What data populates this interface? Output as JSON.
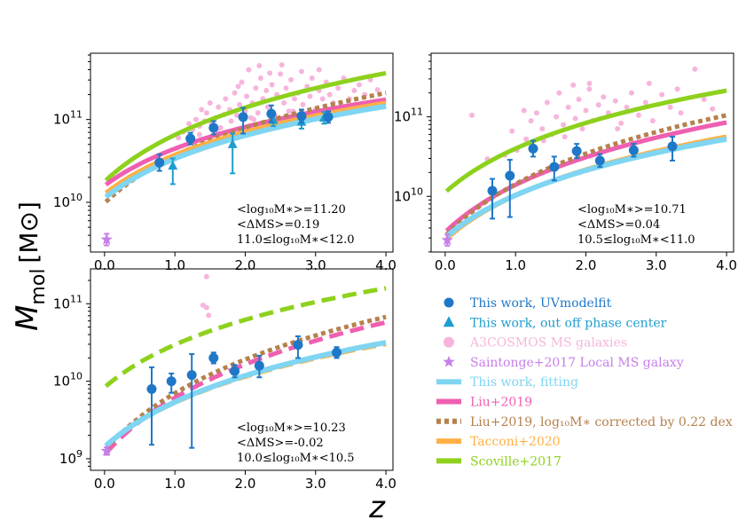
{
  "figure": {
    "ylabel_main": "M",
    "ylabel_sub": "mol",
    "ylabel_unit": "[M⊙]",
    "xlabel": "z"
  },
  "colors": {
    "uv": "#1f77c7",
    "offcenter": "#1e9ecf",
    "a3cosmos": "#f6b5dc",
    "saintonge": "#c77fe8",
    "fitting": "#7fd5f2",
    "liu2019": "#ef5fb1",
    "liu2019c": "#b5814c",
    "tacconi": "#ffb045",
    "scoville": "#8ed11d"
  },
  "legend": [
    {
      "key": "uv",
      "marker": "circle",
      "label": "This work, UVmodelfit",
      "color": "#1f77c7"
    },
    {
      "key": "offcenter",
      "marker": "triangle",
      "label": "This work, out off phase center",
      "color": "#1e9ecf"
    },
    {
      "key": "a3cosmos",
      "marker": "circle",
      "label": "A3COSMOS MS galaxies",
      "color": "#f6b5dc"
    },
    {
      "key": "saintonge",
      "marker": "star",
      "label": "Saintonge+2017 Local MS galaxy",
      "color": "#c77fe8"
    },
    {
      "key": "fitting",
      "marker": "line",
      "label": "This work, fitting",
      "color": "#7fd5f2"
    },
    {
      "key": "liu2019",
      "marker": "line",
      "label": "Liu+2019",
      "color": "#ef5fb1"
    },
    {
      "key": "liu2019c",
      "marker": "line",
      "label": "Liu+2019, log₁₀M∗ corrected by 0.22 dex",
      "color": "#b5814c"
    },
    {
      "key": "tacconi",
      "marker": "line",
      "label": "Tacconi+2020",
      "color": "#ffb045"
    },
    {
      "key": "scoville",
      "marker": "line",
      "label": "Scoville+2017",
      "color": "#8ed11d"
    }
  ],
  "chart_data": [
    {
      "type": "scatter",
      "panel": "top-left",
      "xlim": [
        -0.2,
        4.1
      ],
      "ylim_log10": [
        9.4,
        11.8
      ],
      "y_scale": "log",
      "x_ticks": [
        "0.0",
        "1.0",
        "2.0",
        "3.0",
        "4.0"
      ],
      "y_ticks": [
        {
          "base": "10",
          "exp": "10",
          "log": 10
        },
        {
          "base": "10",
          "exp": "11",
          "log": 11
        }
      ],
      "annotations": [
        "<log₁₀M∗>=11.20",
        "<ΔMS>=0.19",
        "11.0≤log₁₀M∗<12.0"
      ],
      "uv_points": [
        {
          "x": 0.78,
          "y": 10.48,
          "lo": 10.38,
          "hi": 10.58
        },
        {
          "x": 1.22,
          "y": 10.77,
          "lo": 10.7,
          "hi": 10.84
        },
        {
          "x": 1.55,
          "y": 10.9,
          "lo": 10.82,
          "hi": 10.98
        },
        {
          "x": 1.97,
          "y": 11.03,
          "lo": 10.83,
          "hi": 11.14
        },
        {
          "x": 2.37,
          "y": 11.07,
          "lo": 10.97,
          "hi": 11.17
        },
        {
          "x": 2.8,
          "y": 11.04,
          "lo": 10.96,
          "hi": 11.12
        },
        {
          "x": 3.18,
          "y": 11.03,
          "lo": 10.96,
          "hi": 11.1
        }
      ],
      "offcenter_points": [
        {
          "x": 0.97,
          "y": 10.44,
          "lo": 10.22,
          "hi": 10.53
        },
        {
          "x": 1.82,
          "y": 10.7,
          "lo": 10.35,
          "hi": 10.83
        },
        {
          "x": 2.4,
          "y": 10.99,
          "lo": 10.92,
          "hi": 11.06
        },
        {
          "x": 2.8,
          "y": 10.97,
          "lo": 10.89,
          "hi": 11.05
        },
        {
          "x": 3.12,
          "y": 11.02,
          "lo": 10.95,
          "hi": 11.09
        }
      ],
      "saintonge_points": [
        {
          "x": 0.03,
          "y": 9.55,
          "lo": 9.48,
          "hi": 9.62
        }
      ],
      "a3cosmos_points": [
        [
          1.05,
          10.78
        ],
        [
          1.12,
          10.85
        ],
        [
          1.2,
          10.95
        ],
        [
          1.25,
          10.88
        ],
        [
          1.3,
          11.0
        ],
        [
          1.35,
          10.92
        ],
        [
          1.38,
          11.12
        ],
        [
          1.42,
          10.98
        ],
        [
          1.45,
          11.08
        ],
        [
          1.5,
          11.2
        ],
        [
          1.52,
          10.95
        ],
        [
          1.58,
          11.02
        ],
        [
          1.62,
          11.15
        ],
        [
          1.65,
          10.9
        ],
        [
          1.7,
          11.06
        ],
        [
          1.72,
          11.25
        ],
        [
          1.78,
          11.12
        ],
        [
          1.8,
          10.98
        ],
        [
          1.85,
          11.32
        ],
        [
          1.88,
          11.05
        ],
        [
          1.92,
          11.18
        ],
        [
          1.95,
          11.45
        ],
        [
          2.0,
          11.1
        ],
        [
          2.02,
          11.28
        ],
        [
          2.05,
          11.6
        ],
        [
          2.08,
          11.02
        ],
        [
          2.1,
          11.2
        ],
        [
          2.15,
          11.38
        ],
        [
          2.18,
          11.08
        ],
        [
          2.22,
          11.5
        ],
        [
          2.25,
          11.25
        ],
        [
          2.3,
          11.35
        ],
        [
          2.32,
          11.15
        ],
        [
          2.38,
          11.42
        ],
        [
          2.42,
          11.05
        ],
        [
          2.45,
          11.3
        ],
        [
          2.5,
          11.55
        ],
        [
          2.55,
          11.2
        ],
        [
          2.58,
          11.38
        ],
        [
          2.62,
          11.1
        ],
        [
          2.65,
          11.48
        ],
        [
          2.7,
          11.25
        ],
        [
          2.75,
          11.32
        ],
        [
          2.8,
          11.58
        ],
        [
          2.82,
          11.18
        ],
        [
          2.88,
          11.4
        ],
        [
          2.92,
          11.28
        ],
        [
          2.95,
          11.5
        ],
        [
          3.0,
          11.12
        ],
        [
          3.05,
          11.35
        ],
        [
          3.1,
          11.25
        ],
        [
          3.15,
          11.45
        ],
        [
          3.2,
          11.3
        ],
        [
          3.25,
          11.2
        ],
        [
          3.32,
          11.38
        ],
        [
          3.4,
          11.5
        ],
        [
          3.48,
          11.25
        ],
        [
          3.55,
          11.35
        ],
        [
          3.62,
          11.42
        ],
        [
          3.7,
          11.3
        ],
        [
          3.78,
          11.48
        ],
        [
          3.88,
          11.36
        ],
        [
          2.52,
          11.66
        ],
        [
          2.2,
          11.65
        ],
        [
          2.68,
          11.1
        ],
        [
          1.98,
          10.9
        ],
        [
          2.12,
          11.0
        ],
        [
          1.35,
          10.82
        ],
        [
          1.6,
          10.86
        ],
        [
          3.05,
          11.6
        ],
        [
          2.35,
          11.56
        ],
        [
          1.9,
          11.4
        ]
      ],
      "curves": {
        "fitting": [
          10.05,
          11.16
        ],
        "liu2019": [
          10.2,
          11.24
        ],
        "liu2019c": [
          9.99,
          11.32
        ],
        "tacconi": [
          10.1,
          11.2
        ],
        "scoville": [
          10.25,
          11.56
        ]
      }
    },
    {
      "type": "scatter",
      "panel": "top-right",
      "xlim": [
        -0.2,
        4.1
      ],
      "ylim_log10": [
        9.3,
        11.8
      ],
      "y_scale": "log",
      "x_ticks": [
        "0.0",
        "1.0",
        "2.0",
        "3.0",
        "4.0"
      ],
      "y_ticks": [
        {
          "base": "10",
          "exp": "10",
          "log": 10
        },
        {
          "base": "10",
          "exp": "11",
          "log": 11
        }
      ],
      "annotations": [
        "<log₁₀M∗>=10.71",
        "<ΔMS>=0.04",
        "10.5≤log₁₀M∗<11.0"
      ],
      "uv_points": [
        {
          "x": 0.67,
          "y": 10.07,
          "lo": 9.72,
          "hi": 10.22
        },
        {
          "x": 0.92,
          "y": 10.26,
          "lo": 9.74,
          "hi": 10.46
        },
        {
          "x": 1.25,
          "y": 10.6,
          "lo": 10.5,
          "hi": 10.7
        },
        {
          "x": 1.55,
          "y": 10.37,
          "lo": 10.2,
          "hi": 10.5
        },
        {
          "x": 1.87,
          "y": 10.57,
          "lo": 10.48,
          "hi": 10.66
        },
        {
          "x": 2.2,
          "y": 10.45,
          "lo": 10.37,
          "hi": 10.53
        },
        {
          "x": 2.68,
          "y": 10.58,
          "lo": 10.5,
          "hi": 10.66
        },
        {
          "x": 3.23,
          "y": 10.63,
          "lo": 10.45,
          "hi": 10.75
        }
      ],
      "offcenter_points": [],
      "saintonge_points": [
        {
          "x": 0.03,
          "y": 9.45,
          "lo": 9.38,
          "hi": 9.52
        }
      ],
      "a3cosmos_points": [
        [
          0.6,
          10.47
        ],
        [
          0.85,
          10.52
        ],
        [
          0.38,
          11.02
        ],
        [
          1.02,
          10.58
        ],
        [
          1.15,
          10.72
        ],
        [
          1.22,
          10.95
        ],
        [
          1.3,
          11.05
        ],
        [
          1.38,
          10.85
        ],
        [
          1.45,
          11.18
        ],
        [
          1.52,
          10.78
        ],
        [
          1.58,
          11.0
        ],
        [
          1.62,
          11.3
        ],
        [
          1.68,
          10.9
        ],
        [
          1.75,
          11.12
        ],
        [
          1.82,
          11.4
        ],
        [
          1.85,
          10.98
        ],
        [
          1.9,
          11.22
        ],
        [
          1.95,
          10.85
        ],
        [
          2.0,
          11.08
        ],
        [
          2.05,
          11.35
        ],
        [
          2.1,
          10.95
        ],
        [
          2.18,
          11.15
        ],
        [
          2.25,
          11.25
        ],
        [
          2.32,
          11.05
        ],
        [
          2.42,
          11.2
        ],
        [
          2.5,
          10.92
        ],
        [
          2.58,
          11.12
        ],
        [
          2.65,
          11.3
        ],
        [
          2.75,
          11.02
        ],
        [
          2.85,
          11.18
        ],
        [
          2.95,
          10.95
        ],
        [
          3.08,
          11.28
        ],
        [
          3.2,
          11.12
        ],
        [
          3.35,
          11.05
        ],
        [
          3.55,
          11.6
        ],
        [
          3.68,
          11.22
        ],
        [
          3.8,
          11.1
        ],
        [
          2.05,
          11.42
        ],
        [
          1.7,
          10.75
        ],
        [
          1.4,
          10.7
        ],
        [
          2.45,
          10.85
        ],
        [
          2.9,
          11.42
        ],
        [
          3.3,
          11.35
        ],
        [
          1.12,
          11.08
        ],
        [
          0.95,
          10.82
        ]
      ],
      "curves": {
        "fitting": [
          9.48,
          10.72
        ],
        "liu2019": [
          9.55,
          10.93
        ],
        "liu2019c": [
          9.5,
          11.02
        ],
        "tacconi": [
          9.45,
          10.75
        ],
        "scoville": [
          10.05,
          11.33
        ]
      }
    },
    {
      "type": "scatter",
      "panel": "bottom-left",
      "xlim": [
        -0.2,
        4.1
      ],
      "ylim_log10": [
        8.85,
        11.45
      ],
      "y_scale": "log",
      "x_ticks": [
        "0.0",
        "1.0",
        "2.0",
        "3.0",
        "4.0"
      ],
      "y_ticks": [
        {
          "base": "10",
          "exp": "9",
          "log": 9
        },
        {
          "base": "10",
          "exp": "10",
          "log": 10
        },
        {
          "base": "10",
          "exp": "11",
          "log": 11
        }
      ],
      "annotations": [
        "<log₁₀M∗>=10.23",
        "<ΔMS>=-0.02",
        "10.0≤log₁₀M∗<10.5"
      ],
      "uv_points": [
        {
          "x": 0.67,
          "y": 9.9,
          "lo": 9.18,
          "hi": 10.18
        },
        {
          "x": 0.95,
          "y": 10.0,
          "lo": 9.85,
          "hi": 10.1
        },
        {
          "x": 1.24,
          "y": 10.08,
          "lo": 9.14,
          "hi": 10.35
        },
        {
          "x": 1.55,
          "y": 10.3,
          "lo": 10.23,
          "hi": 10.37
        },
        {
          "x": 1.85,
          "y": 10.13,
          "lo": 10.05,
          "hi": 10.21
        },
        {
          "x": 2.2,
          "y": 10.2,
          "lo": 10.05,
          "hi": 10.33
        },
        {
          "x": 2.75,
          "y": 10.47,
          "lo": 10.3,
          "hi": 10.58
        },
        {
          "x": 3.3,
          "y": 10.37,
          "lo": 10.3,
          "hi": 10.44
        }
      ],
      "offcenter_points": [],
      "saintonge_points": [
        {
          "x": 0.03,
          "y": 9.1,
          "lo": 9.05,
          "hi": 9.15
        }
      ],
      "a3cosmos_points": [
        [
          1.45,
          11.35
        ],
        [
          1.45,
          10.95
        ],
        [
          1.48,
          10.85
        ],
        [
          1.4,
          10.98
        ]
      ],
      "dashed": [
        "liu2019",
        "tacconi",
        "scoville"
      ],
      "curves": {
        "fitting": [
          9.15,
          10.5
        ],
        "liu2019": [
          9.05,
          10.76
        ],
        "liu2019c": [
          9.1,
          10.83
        ],
        "tacconi": [
          9.15,
          10.48
        ],
        "scoville": [
          9.92,
          11.2
        ]
      }
    }
  ]
}
